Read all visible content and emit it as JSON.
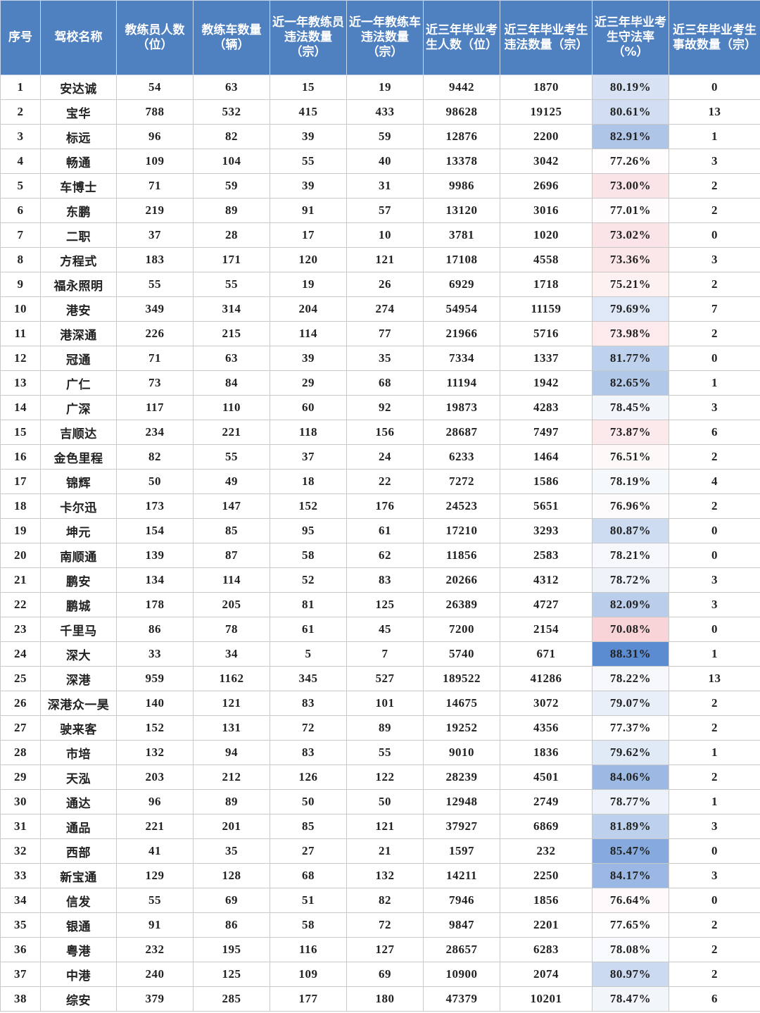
{
  "columns": [
    "序号",
    "驾校名称",
    "教练员人数（位）",
    "教练车数量（辆）",
    "近一年教练员违法数量（宗）",
    "近一年教练车违法数量（宗）",
    "近三年毕业考生人数（位）",
    "近三年毕业考生违法数量（宗）",
    "近三年毕业考生守法率（%）",
    "近三年毕业考生事故数量（宗）"
  ],
  "colors": {
    "header_bg": "#4f80c0",
    "rate_high": "#5b8bd1",
    "rate_mid": "#ffffff",
    "rate_low": "#f8d3d7"
  },
  "rows": [
    [
      "1",
      "安达诚",
      "54",
      "63",
      "15",
      "19",
      "9442",
      "1870",
      "80.19%",
      "0"
    ],
    [
      "2",
      "宝华",
      "788",
      "532",
      "415",
      "433",
      "98628",
      "19125",
      "80.61%",
      "13"
    ],
    [
      "3",
      "标远",
      "96",
      "82",
      "39",
      "59",
      "12876",
      "2200",
      "82.91%",
      "1"
    ],
    [
      "4",
      "畅通",
      "109",
      "104",
      "55",
      "40",
      "13378",
      "3042",
      "77.26%",
      "3"
    ],
    [
      "5",
      "车博士",
      "71",
      "59",
      "39",
      "31",
      "9986",
      "2696",
      "73.00%",
      "2"
    ],
    [
      "6",
      "东鹏",
      "219",
      "89",
      "91",
      "57",
      "13120",
      "3016",
      "77.01%",
      "2"
    ],
    [
      "7",
      "二职",
      "37",
      "28",
      "17",
      "10",
      "3781",
      "1020",
      "73.02%",
      "0"
    ],
    [
      "8",
      "方程式",
      "183",
      "171",
      "120",
      "121",
      "17108",
      "4558",
      "73.36%",
      "3"
    ],
    [
      "9",
      "福永照明",
      "55",
      "55",
      "19",
      "26",
      "6929",
      "1718",
      "75.21%",
      "2"
    ],
    [
      "10",
      "港安",
      "349",
      "314",
      "204",
      "274",
      "54954",
      "11159",
      "79.69%",
      "7"
    ],
    [
      "11",
      "港深通",
      "226",
      "215",
      "114",
      "77",
      "21966",
      "5716",
      "73.98%",
      "2"
    ],
    [
      "12",
      "冠通",
      "71",
      "63",
      "39",
      "35",
      "7334",
      "1337",
      "81.77%",
      "0"
    ],
    [
      "13",
      "广仁",
      "73",
      "84",
      "29",
      "68",
      "11194",
      "1942",
      "82.65%",
      "1"
    ],
    [
      "14",
      "广深",
      "117",
      "110",
      "60",
      "92",
      "19873",
      "4283",
      "78.45%",
      "3"
    ],
    [
      "15",
      "吉顺达",
      "234",
      "221",
      "118",
      "156",
      "28687",
      "7497",
      "73.87%",
      "6"
    ],
    [
      "16",
      "金色里程",
      "82",
      "55",
      "37",
      "24",
      "6233",
      "1464",
      "76.51%",
      "2"
    ],
    [
      "17",
      "锦辉",
      "50",
      "49",
      "18",
      "22",
      "7272",
      "1586",
      "78.19%",
      "4"
    ],
    [
      "18",
      "卡尔迅",
      "173",
      "147",
      "152",
      "176",
      "24523",
      "5651",
      "76.96%",
      "2"
    ],
    [
      "19",
      "坤元",
      "154",
      "85",
      "95",
      "61",
      "17210",
      "3293",
      "80.87%",
      "0"
    ],
    [
      "20",
      "南顺通",
      "139",
      "87",
      "58",
      "62",
      "11856",
      "2583",
      "78.21%",
      "0"
    ],
    [
      "21",
      "鹏安",
      "134",
      "114",
      "52",
      "83",
      "20266",
      "4312",
      "78.72%",
      "3"
    ],
    [
      "22",
      "鹏城",
      "178",
      "205",
      "81",
      "125",
      "26389",
      "4727",
      "82.09%",
      "3"
    ],
    [
      "23",
      "千里马",
      "86",
      "78",
      "61",
      "45",
      "7200",
      "2154",
      "70.08%",
      "0"
    ],
    [
      "24",
      "深大",
      "33",
      "34",
      "5",
      "7",
      "5740",
      "671",
      "88.31%",
      "1"
    ],
    [
      "25",
      "深港",
      "959",
      "1162",
      "345",
      "527",
      "189522",
      "41286",
      "78.22%",
      "13"
    ],
    [
      "26",
      "深港众一昊",
      "140",
      "121",
      "83",
      "101",
      "14675",
      "3072",
      "79.07%",
      "2"
    ],
    [
      "27",
      "驶来客",
      "152",
      "131",
      "72",
      "89",
      "19252",
      "4356",
      "77.37%",
      "2"
    ],
    [
      "28",
      "市培",
      "132",
      "94",
      "83",
      "55",
      "9010",
      "1836",
      "79.62%",
      "1"
    ],
    [
      "29",
      "天泓",
      "203",
      "212",
      "126",
      "122",
      "28239",
      "4501",
      "84.06%",
      "2"
    ],
    [
      "30",
      "通达",
      "96",
      "89",
      "50",
      "50",
      "12948",
      "2749",
      "78.77%",
      "1"
    ],
    [
      "31",
      "通品",
      "221",
      "201",
      "85",
      "121",
      "37927",
      "6869",
      "81.89%",
      "3"
    ],
    [
      "32",
      "西部",
      "41",
      "35",
      "27",
      "21",
      "1597",
      "232",
      "85.47%",
      "0"
    ],
    [
      "33",
      "新宝通",
      "129",
      "128",
      "68",
      "132",
      "14211",
      "2250",
      "84.17%",
      "3"
    ],
    [
      "34",
      "信发",
      "55",
      "69",
      "51",
      "82",
      "7946",
      "1856",
      "76.64%",
      "0"
    ],
    [
      "35",
      "银通",
      "91",
      "86",
      "58",
      "72",
      "9847",
      "2201",
      "77.65%",
      "2"
    ],
    [
      "36",
      "粤港",
      "232",
      "195",
      "116",
      "127",
      "28657",
      "6283",
      "78.08%",
      "2"
    ],
    [
      "37",
      "中港",
      "240",
      "125",
      "109",
      "69",
      "10900",
      "2074",
      "80.97%",
      "2"
    ],
    [
      "38",
      "综安",
      "379",
      "285",
      "177",
      "180",
      "47379",
      "10201",
      "78.47%",
      "6"
    ]
  ]
}
